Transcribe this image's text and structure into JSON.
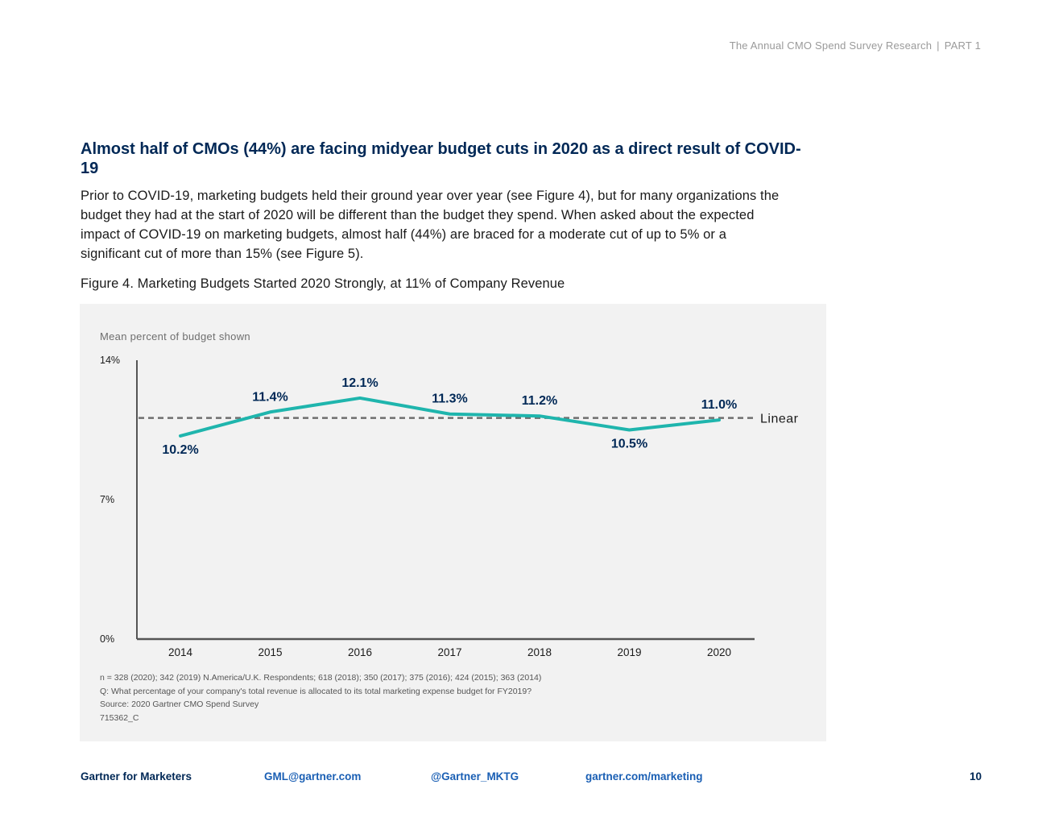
{
  "header": {
    "title": "The Annual CMO Spend Survey Research",
    "separator": "|",
    "part": "PART 1"
  },
  "headline": "Almost half of CMOs (44%) are facing midyear budget cuts in 2020 as a direct result of COVID-19",
  "body_text": "Prior to COVID-19, marketing budgets held their ground year over year (see Figure 4), but for many organizations the budget they had at the start of 2020 will be different than the budget they spend. When asked about the expected impact of COVID-19 on marketing budgets, almost half (44%) are braced for a moderate cut of up to 5% or a significant cut of more than 15% (see Figure 5).",
  "figure_caption": "Figure 4. Marketing Budgets Started 2020 Strongly, at 11% of Company Revenue",
  "chart_data": {
    "type": "line",
    "title": "Marketing Budgets Started 2020 Strongly, at 11% of Company Revenue",
    "subtitle": "Mean percent of budget shown",
    "xlabel": "",
    "ylabel": "",
    "categories": [
      "2014",
      "2015",
      "2016",
      "2017",
      "2018",
      "2019",
      "2020"
    ],
    "series": [
      {
        "name": "Mean percent of budget",
        "values": [
          10.2,
          11.4,
          12.1,
          11.3,
          11.2,
          10.5,
          11.0
        ],
        "labels": [
          "10.2%",
          "11.4%",
          "12.1%",
          "11.3%",
          "11.2%",
          "10.5%",
          "11.0%"
        ],
        "color": "#1fb5ad"
      }
    ],
    "trendline": {
      "name": "Linear",
      "value": 11.1,
      "style": "dashed",
      "color": "#6e6e6e"
    },
    "ylim": [
      0,
      14
    ],
    "yticks": [
      0,
      7,
      14
    ],
    "ytick_labels": [
      "0%",
      "7%",
      "14%"
    ],
    "label_color": "#002856",
    "grid": false,
    "legend": "inline-right"
  },
  "notes": {
    "n": "n = 328 (2020); 342 (2019) N.America/U.K. Respondents; 618 (2018); 350 (2017); 375 (2016); 424 (2015); 363 (2014)",
    "question": "Q: What percentage of your company's total revenue is allocated to its total marketing expense budget for FY2019?",
    "source": "Source: 2020 Gartner CMO Spend Survey",
    "id": "715362_C"
  },
  "footer": {
    "brand": "Gartner for Marketers",
    "email": "GML@gartner.com",
    "twitter": "@Gartner_MKTG",
    "website": "gartner.com/marketing",
    "page_number": "10"
  }
}
